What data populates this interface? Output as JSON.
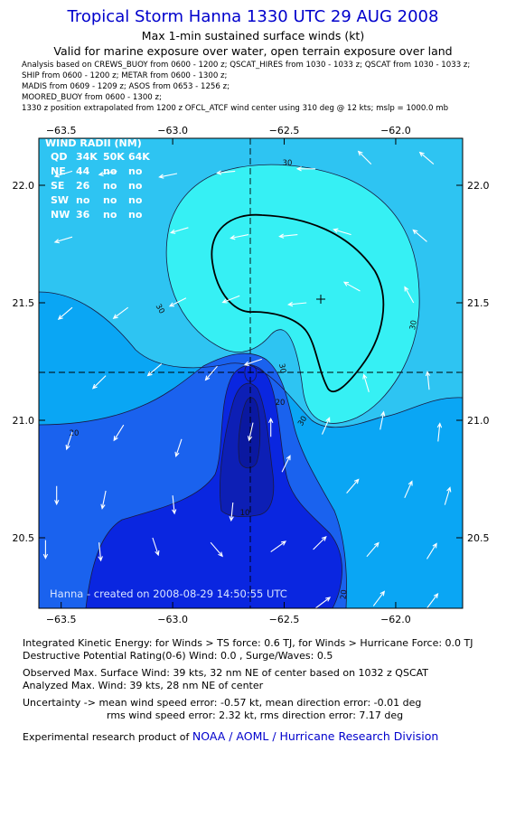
{
  "header": {
    "title": "Tropical Storm Hanna 1330 UTC 29 AUG 2008",
    "subtitle": "Max 1-min sustained surface winds (kt)",
    "valid": "Valid for marine exposure over water, open terrain exposure over land"
  },
  "sources": [
    "Analysis based on  CREWS_BUOY from 0600 - 1200 z;  QSCAT_HIRES from 1030 - 1033 z;  QSCAT from 1030 - 1033 z;",
    "SHIP from 0600 - 1200 z;  METAR from 0600 - 1300 z;",
    "MADIS from 0609 - 1209 z;  ASOS from 0653 - 1256 z;",
    "MOORED_BUOY from 0600 - 1300 z;",
    "       1330 z position extrapolated from 1200 z OFCL_ATCF wind center using 310 deg @ 12 kts; mslp = 1000.0 mb"
  ],
  "chart_data": {
    "type": "contour",
    "xlim": [
      -63.6,
      -61.7
    ],
    "ylim": [
      20.2,
      22.2
    ],
    "x_ticks": [
      -63.5,
      -63.0,
      -62.5,
      -62.0
    ],
    "y_ticks": [
      20.5,
      21.0,
      21.5,
      22.0
    ],
    "x_tick_labels": [
      "−63.5",
      "−63.0",
      "−62.5",
      "−62.0"
    ],
    "y_tick_labels": [
      "20.5",
      "21.0",
      "21.5",
      "22.0"
    ],
    "storm_center": [
      -62.62,
      21.19
    ],
    "max_wind_location": [
      -62.3,
      21.52
    ],
    "contour_levels_kt": [
      10,
      20,
      30
    ],
    "contour_labels": [
      "30",
      "30",
      "30",
      "30",
      "30",
      "20",
      "20",
      "20",
      "10"
    ],
    "colors": {
      "lt20": "#0a26e0",
      "lt25": "#1a62ee",
      "lt30": "#0aa6f4",
      "ge30": "#2ec4f2",
      "ge34": "#36f0f4",
      "inner": "#0d1fb5"
    },
    "wind_radii": {
      "title": "WIND RADII (NM)",
      "header": [
        "QD",
        "34K",
        "50K",
        "64K"
      ],
      "rows": [
        [
          "NE",
          "44",
          "no",
          "no"
        ],
        [
          "SE",
          "26",
          "no",
          "no"
        ],
        [
          "SW",
          "no",
          "no",
          "no"
        ],
        [
          "NW",
          "36",
          "no",
          "no"
        ]
      ]
    },
    "watermark": "Hanna - created on 2008-08-29 14:50:55 UTC",
    "wind_vectors": [
      {
        "lon": -63.45,
        "lat": 22.06,
        "u": -1.0,
        "v": -0.3
      },
      {
        "lon": -63.25,
        "lat": 22.06,
        "u": -1.0,
        "v": -0.2
      },
      {
        "lon": -62.98,
        "lat": 22.05,
        "u": -1.0,
        "v": -0.2
      },
      {
        "lon": -62.72,
        "lat": 22.06,
        "u": -1.0,
        "v": -0.1
      },
      {
        "lon": -62.36,
        "lat": 22.07,
        "u": -1.0,
        "v": 0.0
      },
      {
        "lon": -62.11,
        "lat": 22.09,
        "u": -0.7,
        "v": 0.7
      },
      {
        "lon": -61.83,
        "lat": 22.09,
        "u": -0.7,
        "v": 0.6
      },
      {
        "lon": -63.45,
        "lat": 21.78,
        "u": -1.0,
        "v": -0.3
      },
      {
        "lon": -62.93,
        "lat": 21.82,
        "u": -1.0,
        "v": -0.3
      },
      {
        "lon": -62.66,
        "lat": 21.79,
        "u": -1.0,
        "v": -0.2
      },
      {
        "lon": -62.44,
        "lat": 21.79,
        "u": -1.0,
        "v": -0.1
      },
      {
        "lon": -62.2,
        "lat": 21.79,
        "u": -1.0,
        "v": 0.3
      },
      {
        "lon": -61.86,
        "lat": 21.76,
        "u": -0.7,
        "v": 0.6
      },
      {
        "lon": -63.45,
        "lat": 21.48,
        "u": -0.7,
        "v": -0.6
      },
      {
        "lon": -63.2,
        "lat": 21.48,
        "u": -0.8,
        "v": -0.6
      },
      {
        "lon": -62.94,
        "lat": 21.52,
        "u": -0.8,
        "v": -0.4
      },
      {
        "lon": -62.7,
        "lat": 21.53,
        "u": -1.0,
        "v": -0.4
      },
      {
        "lon": -62.4,
        "lat": 21.5,
        "u": -1.0,
        "v": -0.1
      },
      {
        "lon": -62.16,
        "lat": 21.55,
        "u": -0.9,
        "v": 0.5
      },
      {
        "lon": -61.92,
        "lat": 21.5,
        "u": -0.5,
        "v": 0.9
      },
      {
        "lon": -63.3,
        "lat": 21.19,
        "u": -0.6,
        "v": -0.6
      },
      {
        "lon": -63.05,
        "lat": 21.24,
        "u": -0.7,
        "v": -0.6
      },
      {
        "lon": -62.8,
        "lat": 21.23,
        "u": -0.6,
        "v": -0.7
      },
      {
        "lon": -62.6,
        "lat": 21.26,
        "u": -0.9,
        "v": -0.3
      },
      {
        "lon": -62.12,
        "lat": 21.12,
        "u": -0.3,
        "v": 1.0
      },
      {
        "lon": -61.85,
        "lat": 21.13,
        "u": -0.1,
        "v": 1.0
      },
      {
        "lon": -63.45,
        "lat": 20.95,
        "u": -0.3,
        "v": -0.9
      },
      {
        "lon": -63.22,
        "lat": 20.98,
        "u": -0.5,
        "v": -0.8
      },
      {
        "lon": -62.96,
        "lat": 20.92,
        "u": -0.3,
        "v": -0.9
      },
      {
        "lon": -62.64,
        "lat": 20.99,
        "u": -0.2,
        "v": -0.9
      },
      {
        "lon": -62.56,
        "lat": 20.93,
        "u": 0.0,
        "v": 1.0
      },
      {
        "lon": -62.33,
        "lat": 20.94,
        "u": 0.4,
        "v": 0.9
      },
      {
        "lon": -62.07,
        "lat": 20.96,
        "u": 0.2,
        "v": 1.0
      },
      {
        "lon": -61.81,
        "lat": 20.91,
        "u": 0.1,
        "v": 1.0
      },
      {
        "lon": -63.52,
        "lat": 20.72,
        "u": 0.0,
        "v": -1.0
      },
      {
        "lon": -63.3,
        "lat": 20.7,
        "u": -0.2,
        "v": -1.0
      },
      {
        "lon": -63.0,
        "lat": 20.68,
        "u": 0.1,
        "v": -1.0
      },
      {
        "lon": -62.73,
        "lat": 20.65,
        "u": -0.1,
        "v": -1.0
      },
      {
        "lon": -62.51,
        "lat": 20.78,
        "u": 0.4,
        "v": 0.8
      },
      {
        "lon": -62.22,
        "lat": 20.69,
        "u": 0.6,
        "v": 0.7
      },
      {
        "lon": -61.96,
        "lat": 20.67,
        "u": 0.4,
        "v": 0.9
      },
      {
        "lon": -61.78,
        "lat": 20.64,
        "u": 0.3,
        "v": 1.0
      },
      {
        "lon": -63.57,
        "lat": 20.49,
        "u": 0.0,
        "v": -1.0
      },
      {
        "lon": -63.33,
        "lat": 20.48,
        "u": 0.1,
        "v": -1.0
      },
      {
        "lon": -63.09,
        "lat": 20.5,
        "u": 0.3,
        "v": -0.9
      },
      {
        "lon": -62.83,
        "lat": 20.48,
        "u": 0.6,
        "v": -0.7
      },
      {
        "lon": -62.56,
        "lat": 20.44,
        "u": 0.7,
        "v": 0.5
      },
      {
        "lon": -62.37,
        "lat": 20.45,
        "u": 0.6,
        "v": 0.6
      },
      {
        "lon": -62.13,
        "lat": 20.42,
        "u": 0.6,
        "v": 0.7
      },
      {
        "lon": -61.86,
        "lat": 20.41,
        "u": 0.5,
        "v": 0.8
      },
      {
        "lon": -62.36,
        "lat": 20.2,
        "u": 0.8,
        "v": 0.6
      },
      {
        "lon": -62.1,
        "lat": 20.21,
        "u": 0.6,
        "v": 0.8
      },
      {
        "lon": -61.86,
        "lat": 20.2,
        "u": 0.6,
        "v": 0.8
      }
    ]
  },
  "footer": {
    "ike": "Integrated Kinetic Energy:  for Winds > TS force: 0.6 TJ,  for Winds > Hurricane Force: 0.0 TJ",
    "dpr": "Destructive Potential Rating(0-6)   Wind: 0.0 , Surge/Waves: 0.5",
    "obs_max": "Observed Max. Surface Wind: 39 kts, 32 nm NE of center based on 1032 z QSCAT",
    "an_max": "Analyzed Max. Wind: 39 kts, 28 nm NE of center",
    "unc1": "Uncertainty -> mean wind speed error:  -0.57 kt,   mean direction error:  -0.01 deg",
    "unc2": "rms wind speed error: 2.32 kt,    rms direction error: 7.17 deg",
    "credit_prefix": "Experimental research product of ",
    "credit_org": "NOAA / AOML / Hurricane Research Division"
  }
}
